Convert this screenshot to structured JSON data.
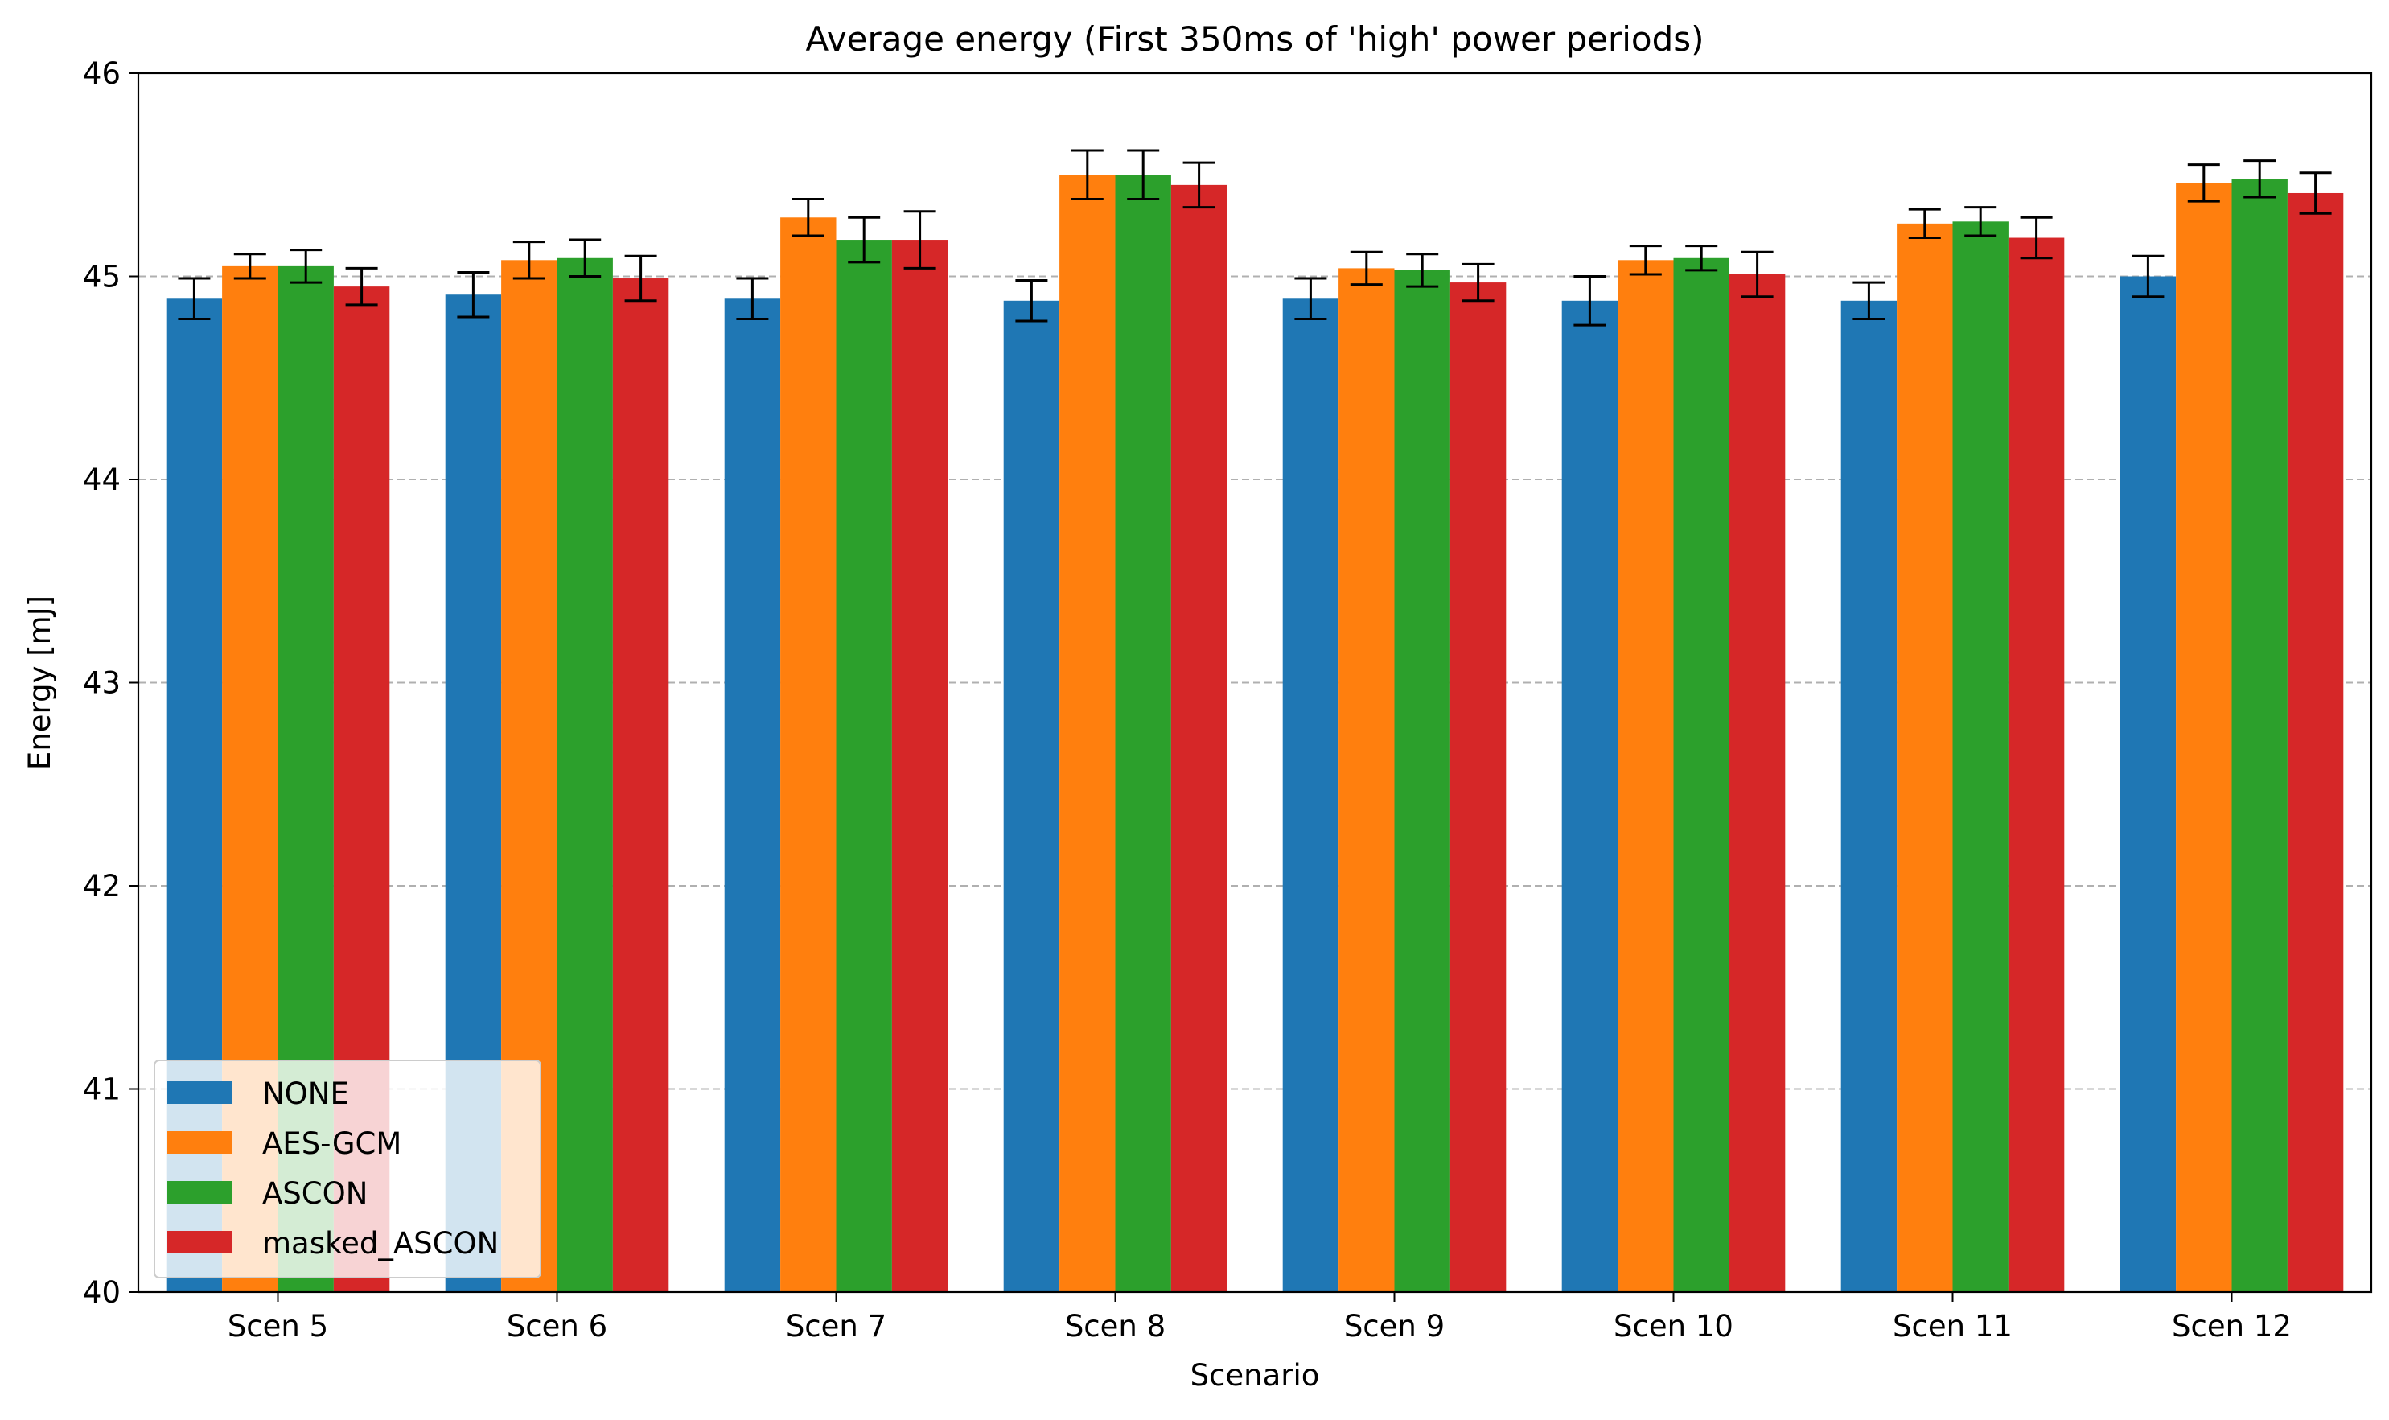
{
  "chart_data": {
    "type": "bar",
    "title": "Average energy (First 350ms of 'high' power periods)",
    "xlabel": "Scenario",
    "ylabel": "Energy [mJ]",
    "ylim": [
      40,
      46
    ],
    "yticks": [
      40,
      41,
      42,
      43,
      44,
      45,
      46
    ],
    "grid": "y-dashed",
    "legend_position": "lower-left",
    "categories": [
      "Scen 5",
      "Scen 6",
      "Scen 7",
      "Scen 8",
      "Scen 9",
      "Scen 10",
      "Scen 11",
      "Scen 12"
    ],
    "series": [
      {
        "name": "NONE",
        "color": "#1f77b4",
        "values": [
          44.89,
          44.91,
          44.89,
          44.88,
          44.89,
          44.88,
          44.88,
          45.0
        ],
        "errors": [
          0.1,
          0.11,
          0.1,
          0.1,
          0.1,
          0.12,
          0.09,
          0.1
        ]
      },
      {
        "name": "AES-GCM",
        "color": "#ff7f0e",
        "values": [
          45.05,
          45.08,
          45.29,
          45.5,
          45.04,
          45.08,
          45.26,
          45.46
        ],
        "errors": [
          0.06,
          0.09,
          0.09,
          0.12,
          0.08,
          0.07,
          0.07,
          0.09
        ]
      },
      {
        "name": "ASCON",
        "color": "#2ca02c",
        "values": [
          45.05,
          45.09,
          45.18,
          45.5,
          45.03,
          45.09,
          45.27,
          45.48
        ],
        "errors": [
          0.08,
          0.09,
          0.11,
          0.12,
          0.08,
          0.06,
          0.07,
          0.09
        ]
      },
      {
        "name": "masked_ASCON",
        "color": "#d62728",
        "values": [
          44.95,
          44.99,
          45.18,
          45.45,
          44.97,
          45.01,
          45.19,
          45.41
        ],
        "errors": [
          0.09,
          0.11,
          0.14,
          0.11,
          0.09,
          0.11,
          0.1,
          0.1
        ]
      }
    ]
  }
}
